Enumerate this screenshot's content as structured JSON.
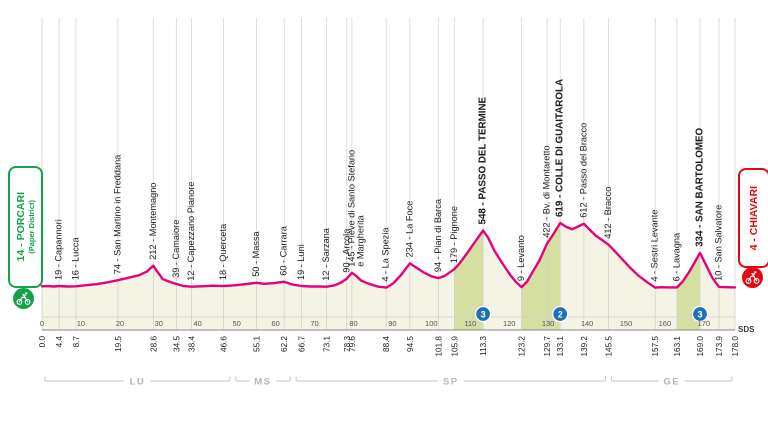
{
  "chart_data": {
    "type": "area",
    "description": "Cycling stage altimetry profile from Porcari to Chiavari",
    "km_total": 178,
    "ylim_m": [
      0,
      650
    ],
    "start": {
      "label": "14 - PORCARI",
      "sublabel": "(Paper District)"
    },
    "finish": {
      "label": "4 - CHIAVARI"
    },
    "credit": "SDS",
    "colors": {
      "line": "#e6007e",
      "fill": "#f5f3e3",
      "climb": "#d5dfa2",
      "badge": "#1d71b8",
      "green": "#13a24a",
      "red": "#e30613",
      "grid": "#cfcfcf",
      "label_text": "#1d1d1b",
      "province_text": "#b5b5b5"
    },
    "waypoints": [
      {
        "km": 4.4,
        "elev": 19,
        "name": "Capannori"
      },
      {
        "km": 8.7,
        "elev": 16,
        "name": "Lucca"
      },
      {
        "km": 19.5,
        "elev": 74,
        "name": "San Martino in Freddana"
      },
      {
        "km": 28.6,
        "elev": 212,
        "name": "Montemagno"
      },
      {
        "km": 34.5,
        "elev": 39,
        "name": "Camaiore"
      },
      {
        "km": 38.4,
        "elev": 12,
        "name": "Capezzano Pianore"
      },
      {
        "km": 46.6,
        "elev": 18,
        "name": "Querceta"
      },
      {
        "km": 55.1,
        "elev": 50,
        "name": "Massa"
      },
      {
        "km": 62.2,
        "elev": 60,
        "name": "Carrara"
      },
      {
        "km": 66.7,
        "elev": 19,
        "name": "Luni"
      },
      {
        "km": 73.1,
        "elev": 12,
        "name": "Sarzana"
      },
      {
        "km": 78.3,
        "elev": 90,
        "name": "Arcola"
      },
      {
        "km": 79.6,
        "elev": 145,
        "name": "Pieve di Santo Stefano",
        "name2": "e Margherita"
      },
      {
        "km": 88.4,
        "elev": 4,
        "name": "La Spezia"
      },
      {
        "km": 94.5,
        "elev": 234,
        "name": "La Foce"
      },
      {
        "km": 101.8,
        "elev": 94,
        "name": "Pian di Barca"
      },
      {
        "km": 105.9,
        "elev": 179,
        "name": "Pignone"
      },
      {
        "km": 113.3,
        "elev": 548,
        "name": "PASSO DEL TERMINE",
        "bold": true
      },
      {
        "km": 123.2,
        "elev": 9,
        "name": "Levanto"
      },
      {
        "km": 129.7,
        "elev": 422,
        "name": "Bv. di Montaretto"
      },
      {
        "km": 133.1,
        "elev": 619,
        "name": "COLLE DI GUAITAROLA",
        "bold": true
      },
      {
        "km": 139.2,
        "elev": 612,
        "name": "Passo del Bracco"
      },
      {
        "km": 145.5,
        "elev": 412,
        "name": "Bracco"
      },
      {
        "km": 157.5,
        "elev": 4,
        "name": "Sestri Levante"
      },
      {
        "km": 163.1,
        "elev": 6,
        "name": "Lavagna"
      },
      {
        "km": 169.0,
        "elev": 334,
        "name": "SAN BARTOLOMEO",
        "bold": true
      },
      {
        "km": 173.9,
        "elev": 10,
        "name": "San Salvatore"
      }
    ],
    "km_ticks": [
      "0.0",
      "4.4",
      "8.7",
      "19.5",
      "28.6",
      "34.5",
      "38.4",
      "46.6",
      "55.1",
      "62.2",
      "66.7",
      "73.1",
      "78.3",
      "79.6",
      "88.4",
      "94.5",
      "101.8",
      "105.9",
      "113.3",
      "123.2",
      "129.7",
      "133.1",
      "139.2",
      "145.5",
      "157.5",
      "163.1",
      "169.0",
      "173.9",
      "178.0"
    ],
    "decade_ticks": [
      0,
      10,
      20,
      30,
      40,
      50,
      60,
      70,
      80,
      90,
      100,
      110,
      120,
      130,
      140,
      150,
      160,
      170
    ],
    "gpm": [
      {
        "km": 113.3,
        "category": "3"
      },
      {
        "km": 133.1,
        "category": "2"
      },
      {
        "km": 169.0,
        "category": "3"
      }
    ],
    "climb_segments": [
      [
        105.9,
        113.3
      ],
      [
        123.2,
        133.1
      ],
      [
        163.1,
        169.0
      ]
    ],
    "provinces": [
      {
        "code": "LU",
        "from_km": 0,
        "to_km": 49
      },
      {
        "code": "MS",
        "from_km": 49,
        "to_km": 64.5
      },
      {
        "code": "SP",
        "from_km": 64.5,
        "to_km": 145.5
      },
      {
        "code": "GE",
        "from_km": 145.5,
        "to_km": 178
      }
    ],
    "profile": [
      [
        0,
        16
      ],
      [
        1.5,
        18
      ],
      [
        3,
        14
      ],
      [
        4.4,
        19
      ],
      [
        6.5,
        14
      ],
      [
        8.7,
        16
      ],
      [
        11,
        26
      ],
      [
        14,
        36
      ],
      [
        17,
        55
      ],
      [
        19.5,
        74
      ],
      [
        22,
        96
      ],
      [
        25,
        122
      ],
      [
        27,
        158
      ],
      [
        28.6,
        212
      ],
      [
        29.6,
        158
      ],
      [
        31,
        86
      ],
      [
        33,
        56
      ],
      [
        34.5,
        39
      ],
      [
        36.2,
        20
      ],
      [
        38.4,
        12
      ],
      [
        41,
        16
      ],
      [
        44,
        22
      ],
      [
        46.6,
        18
      ],
      [
        49.5,
        26
      ],
      [
        52.5,
        38
      ],
      [
        55.1,
        50
      ],
      [
        57,
        40
      ],
      [
        59.5,
        46
      ],
      [
        62.2,
        60
      ],
      [
        64.2,
        34
      ],
      [
        66.7,
        19
      ],
      [
        69,
        14
      ],
      [
        71,
        14
      ],
      [
        73.1,
        12
      ],
      [
        75.2,
        26
      ],
      [
        77,
        56
      ],
      [
        78.3,
        90
      ],
      [
        79.6,
        145
      ],
      [
        80.6,
        118
      ],
      [
        82,
        70
      ],
      [
        84,
        40
      ],
      [
        86.2,
        14
      ],
      [
        88.4,
        4
      ],
      [
        90.2,
        44
      ],
      [
        92.2,
        124
      ],
      [
        94.5,
        234
      ],
      [
        96,
        198
      ],
      [
        98,
        150
      ],
      [
        100,
        112
      ],
      [
        101.8,
        94
      ],
      [
        103.3,
        112
      ],
      [
        105.9,
        179
      ],
      [
        107.2,
        232
      ],
      [
        109,
        322
      ],
      [
        111.2,
        438
      ],
      [
        113.3,
        548
      ],
      [
        114.6,
        478
      ],
      [
        116.2,
        356
      ],
      [
        118.2,
        238
      ],
      [
        120.2,
        128
      ],
      [
        121.7,
        58
      ],
      [
        123.2,
        9
      ],
      [
        124.6,
        62
      ],
      [
        126.2,
        164
      ],
      [
        127.8,
        266
      ],
      [
        129.7,
        422
      ],
      [
        131.2,
        504
      ],
      [
        133.1,
        619
      ],
      [
        134.6,
        583
      ],
      [
        136.2,
        560
      ],
      [
        137.7,
        586
      ],
      [
        139.2,
        612
      ],
      [
        140.6,
        558
      ],
      [
        142.2,
        500
      ],
      [
        143.8,
        458
      ],
      [
        145.5,
        412
      ],
      [
        147.2,
        348
      ],
      [
        149.2,
        268
      ],
      [
        151.2,
        188
      ],
      [
        153.2,
        118
      ],
      [
        155.4,
        56
      ],
      [
        157.5,
        4
      ],
      [
        159.2,
        8
      ],
      [
        161.2,
        6
      ],
      [
        163.1,
        6
      ],
      [
        164.6,
        62
      ],
      [
        166.2,
        152
      ],
      [
        167.6,
        242
      ],
      [
        169,
        334
      ],
      [
        170.6,
        216
      ],
      [
        172.2,
        96
      ],
      [
        173.9,
        10
      ],
      [
        176,
        8
      ],
      [
        178,
        6
      ]
    ]
  }
}
